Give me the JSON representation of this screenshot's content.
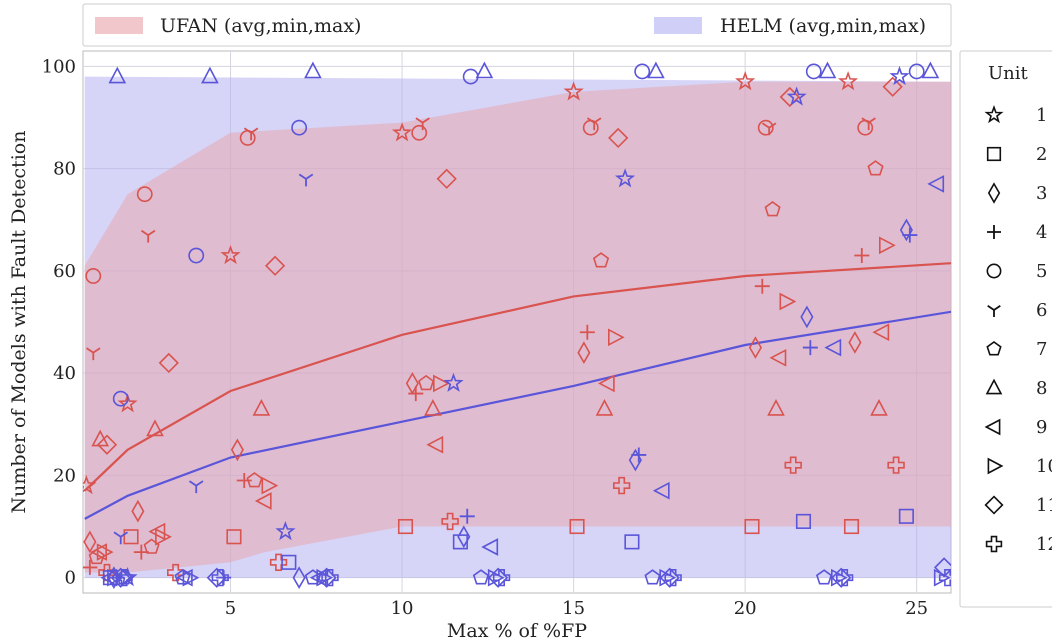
{
  "chart_data": {
    "type": "scatter",
    "xlabel": "Max % of %FP",
    "ylabel": "Number of Models with Fault Detection",
    "xlim": [
      0.7,
      26
    ],
    "ylim": [
      -3,
      103
    ],
    "xticks": [
      5,
      10,
      15,
      20,
      25
    ],
    "yticks": [
      0,
      20,
      40,
      60,
      80,
      100
    ],
    "grid": true,
    "legend_top": {
      "placement": "top",
      "entries": [
        {
          "label": "UFAN (avg,min,max)",
          "color": "#f2c7cc"
        },
        {
          "label": "HELM (avg,min,max)",
          "color": "#cfcff7"
        }
      ]
    },
    "legend_units": {
      "placement": "right",
      "title": "Unit",
      "entries": [
        {
          "label": "1",
          "marker": "star"
        },
        {
          "label": "2",
          "marker": "square"
        },
        {
          "label": "3",
          "marker": "diamond"
        },
        {
          "label": "4",
          "marker": "plus"
        },
        {
          "label": "5",
          "marker": "circle"
        },
        {
          "label": "6",
          "marker": "tri-down"
        },
        {
          "label": "7",
          "marker": "pentagon"
        },
        {
          "label": "8",
          "marker": "triangle-up"
        },
        {
          "label": "9",
          "marker": "triangle-left"
        },
        {
          "label": "10",
          "marker": "triangle-right"
        },
        {
          "label": "11",
          "marker": "diamond-wide"
        },
        {
          "label": "12",
          "marker": "thick-plus"
        }
      ]
    },
    "colors": {
      "ufan": "#d9534f",
      "helm": "#5a55d9",
      "ufan_band": "#e8a8b0",
      "helm_band": "#b4b0f0"
    },
    "series": [
      {
        "name": "UFAN (avg,min,max)",
        "color": "#d9534f",
        "avg": {
          "x": [
            0.75,
            2,
            5,
            10,
            15,
            20,
            26
          ],
          "y": [
            17,
            25,
            36.5,
            47.5,
            55,
            59,
            61.5
          ]
        },
        "min": {
          "x": [
            0.75,
            2,
            5,
            6,
            10,
            26
          ],
          "y": [
            1,
            1,
            3,
            5,
            10,
            10
          ]
        },
        "max": {
          "x": [
            0.75,
            2,
            5,
            10,
            15,
            20,
            26
          ],
          "y": [
            61,
            75,
            87,
            89,
            95,
            97,
            97
          ]
        },
        "points": [
          {
            "m": "star",
            "x": 0.8,
            "y": 18
          },
          {
            "m": "star",
            "x": 2.0,
            "y": 34
          },
          {
            "m": "star",
            "x": 5.0,
            "y": 63
          },
          {
            "m": "star",
            "x": 10.0,
            "y": 87
          },
          {
            "m": "star",
            "x": 15.0,
            "y": 95
          },
          {
            "m": "star",
            "x": 20.0,
            "y": 97
          },
          {
            "m": "star",
            "x": 23.0,
            "y": 97
          },
          {
            "m": "square",
            "x": 2.1,
            "y": 8
          },
          {
            "m": "square",
            "x": 5.1,
            "y": 8
          },
          {
            "m": "square",
            "x": 10.1,
            "y": 10
          },
          {
            "m": "square",
            "x": 15.1,
            "y": 10
          },
          {
            "m": "square",
            "x": 20.2,
            "y": 10
          },
          {
            "m": "square",
            "x": 23.1,
            "y": 10
          },
          {
            "m": "diamond",
            "x": 2.3,
            "y": 13
          },
          {
            "m": "diamond",
            "x": 5.2,
            "y": 25
          },
          {
            "m": "diamond",
            "x": 10.3,
            "y": 38
          },
          {
            "m": "diamond",
            "x": 15.3,
            "y": 44
          },
          {
            "m": "diamond",
            "x": 20.3,
            "y": 45
          },
          {
            "m": "diamond",
            "x": 23.2,
            "y": 46
          },
          {
            "m": "diamond",
            "x": 0.9,
            "y": 7
          },
          {
            "m": "plus",
            "x": 0.9,
            "y": 2
          },
          {
            "m": "plus",
            "x": 2.4,
            "y": 5
          },
          {
            "m": "plus",
            "x": 5.4,
            "y": 19
          },
          {
            "m": "plus",
            "x": 10.4,
            "y": 36
          },
          {
            "m": "plus",
            "x": 15.4,
            "y": 48
          },
          {
            "m": "plus",
            "x": 20.5,
            "y": 57
          },
          {
            "m": "plus",
            "x": 23.4,
            "y": 63
          },
          {
            "m": "circle",
            "x": 1.0,
            "y": 59
          },
          {
            "m": "circle",
            "x": 2.5,
            "y": 75
          },
          {
            "m": "circle",
            "x": 5.5,
            "y": 86
          },
          {
            "m": "circle",
            "x": 10.5,
            "y": 87
          },
          {
            "m": "circle",
            "x": 15.5,
            "y": 88
          },
          {
            "m": "circle",
            "x": 20.6,
            "y": 88
          },
          {
            "m": "circle",
            "x": 23.5,
            "y": 88
          },
          {
            "m": "tri-down",
            "x": 1.0,
            "y": 44
          },
          {
            "m": "tri-down",
            "x": 2.6,
            "y": 67
          },
          {
            "m": "tri-down",
            "x": 5.6,
            "y": 87
          },
          {
            "m": "tri-down",
            "x": 10.6,
            "y": 89
          },
          {
            "m": "tri-down",
            "x": 15.6,
            "y": 89
          },
          {
            "m": "tri-down",
            "x": 20.7,
            "y": 88
          },
          {
            "m": "tri-down",
            "x": 23.6,
            "y": 89
          },
          {
            "m": "pentagon",
            "x": 1.1,
            "y": 4
          },
          {
            "m": "pentagon",
            "x": 2.7,
            "y": 6
          },
          {
            "m": "pentagon",
            "x": 5.7,
            "y": 19
          },
          {
            "m": "pentagon",
            "x": 10.7,
            "y": 38
          },
          {
            "m": "pentagon",
            "x": 15.8,
            "y": 62
          },
          {
            "m": "pentagon",
            "x": 20.8,
            "y": 72
          },
          {
            "m": "pentagon",
            "x": 23.8,
            "y": 80
          },
          {
            "m": "triangle-up",
            "x": 1.2,
            "y": 27
          },
          {
            "m": "triangle-up",
            "x": 2.8,
            "y": 29
          },
          {
            "m": "triangle-up",
            "x": 5.9,
            "y": 33
          },
          {
            "m": "triangle-up",
            "x": 10.9,
            "y": 33
          },
          {
            "m": "triangle-up",
            "x": 15.9,
            "y": 33
          },
          {
            "m": "triangle-up",
            "x": 20.9,
            "y": 33
          },
          {
            "m": "triangle-up",
            "x": 23.9,
            "y": 33
          },
          {
            "m": "triangle-left",
            "x": 1.2,
            "y": 5
          },
          {
            "m": "triangle-left",
            "x": 2.9,
            "y": 9
          },
          {
            "m": "triangle-left",
            "x": 6.0,
            "y": 15
          },
          {
            "m": "triangle-left",
            "x": 11.0,
            "y": 26
          },
          {
            "m": "triangle-left",
            "x": 16.0,
            "y": 38
          },
          {
            "m": "triangle-left",
            "x": 21.0,
            "y": 43
          },
          {
            "m": "triangle-left",
            "x": 24.0,
            "y": 48
          },
          {
            "m": "triangle-right",
            "x": 1.3,
            "y": 5
          },
          {
            "m": "triangle-right",
            "x": 3.0,
            "y": 8
          },
          {
            "m": "triangle-right",
            "x": 6.1,
            "y": 18
          },
          {
            "m": "triangle-right",
            "x": 11.1,
            "y": 38
          },
          {
            "m": "triangle-right",
            "x": 16.2,
            "y": 47
          },
          {
            "m": "triangle-right",
            "x": 21.2,
            "y": 54
          },
          {
            "m": "triangle-right",
            "x": 24.1,
            "y": 65
          },
          {
            "m": "diamond-wide",
            "x": 1.4,
            "y": 26
          },
          {
            "m": "diamond-wide",
            "x": 3.2,
            "y": 42
          },
          {
            "m": "diamond-wide",
            "x": 6.3,
            "y": 61
          },
          {
            "m": "diamond-wide",
            "x": 11.3,
            "y": 78
          },
          {
            "m": "diamond-wide",
            "x": 16.3,
            "y": 86
          },
          {
            "m": "diamond-wide",
            "x": 21.3,
            "y": 94
          },
          {
            "m": "diamond-wide",
            "x": 24.3,
            "y": 96
          },
          {
            "m": "thick-plus",
            "x": 1.4,
            "y": 1
          },
          {
            "m": "thick-plus",
            "x": 3.4,
            "y": 1
          },
          {
            "m": "thick-plus",
            "x": 6.4,
            "y": 3
          },
          {
            "m": "thick-plus",
            "x": 11.4,
            "y": 11
          },
          {
            "m": "thick-plus",
            "x": 16.4,
            "y": 18
          },
          {
            "m": "thick-plus",
            "x": 21.4,
            "y": 22
          },
          {
            "m": "thick-plus",
            "x": 24.4,
            "y": 22
          }
        ]
      },
      {
        "name": "HELM (avg,min,max)",
        "color": "#5a55d9",
        "avg": {
          "x": [
            0.75,
            2,
            5,
            10,
            15,
            20,
            26
          ],
          "y": [
            11.5,
            16,
            23.5,
            30.5,
            37.5,
            45.5,
            52
          ]
        },
        "min": {
          "x": [
            0.75,
            26
          ],
          "y": [
            0,
            0
          ]
        },
        "max": {
          "x": [
            0.75,
            26
          ],
          "y": [
            98,
            97
          ]
        },
        "points": [
          {
            "m": "star",
            "x": 2.0,
            "y": 0
          },
          {
            "m": "star",
            "x": 6.6,
            "y": 9
          },
          {
            "m": "star",
            "x": 11.5,
            "y": 38
          },
          {
            "m": "star",
            "x": 16.5,
            "y": 78
          },
          {
            "m": "star",
            "x": 21.5,
            "y": 94
          },
          {
            "m": "star",
            "x": 24.5,
            "y": 98
          },
          {
            "m": "square",
            "x": 1.5,
            "y": 0
          },
          {
            "m": "square",
            "x": 6.7,
            "y": 3
          },
          {
            "m": "square",
            "x": 11.7,
            "y": 7
          },
          {
            "m": "square",
            "x": 16.7,
            "y": 7
          },
          {
            "m": "square",
            "x": 21.7,
            "y": 11
          },
          {
            "m": "square",
            "x": 24.7,
            "y": 12
          },
          {
            "m": "diamond",
            "x": 1.6,
            "y": 0
          },
          {
            "m": "diamond",
            "x": 7.0,
            "y": 0
          },
          {
            "m": "diamond",
            "x": 11.8,
            "y": 8
          },
          {
            "m": "diamond",
            "x": 16.8,
            "y": 23
          },
          {
            "m": "diamond",
            "x": 21.8,
            "y": 51
          },
          {
            "m": "diamond",
            "x": 24.7,
            "y": 68
          },
          {
            "m": "plus",
            "x": 1.7,
            "y": 0
          },
          {
            "m": "plus",
            "x": 4.8,
            "y": 0
          },
          {
            "m": "plus",
            "x": 11.9,
            "y": 12
          },
          {
            "m": "plus",
            "x": 16.9,
            "y": 24
          },
          {
            "m": "plus",
            "x": 21.9,
            "y": 45
          },
          {
            "m": "plus",
            "x": 24.8,
            "y": 67
          },
          {
            "m": "circle",
            "x": 1.8,
            "y": 35
          },
          {
            "m": "circle",
            "x": 4.0,
            "y": 63
          },
          {
            "m": "circle",
            "x": 7.0,
            "y": 88
          },
          {
            "m": "circle",
            "x": 12.0,
            "y": 98
          },
          {
            "m": "circle",
            "x": 17.0,
            "y": 99
          },
          {
            "m": "circle",
            "x": 22.0,
            "y": 99
          },
          {
            "m": "circle",
            "x": 25.0,
            "y": 99
          },
          {
            "m": "tri-down",
            "x": 1.8,
            "y": 8
          },
          {
            "m": "tri-down",
            "x": 4.0,
            "y": 18
          },
          {
            "m": "tri-down",
            "x": 7.2,
            "y": 78
          },
          {
            "m": "pentagon",
            "x": 1.9,
            "y": 0
          },
          {
            "m": "pentagon",
            "x": 3.6,
            "y": 0
          },
          {
            "m": "pentagon",
            "x": 7.4,
            "y": 0
          },
          {
            "m": "pentagon",
            "x": 12.3,
            "y": 0
          },
          {
            "m": "pentagon",
            "x": 17.3,
            "y": 0
          },
          {
            "m": "pentagon",
            "x": 22.3,
            "y": 0
          },
          {
            "m": "triangle-up",
            "x": 1.7,
            "y": 98
          },
          {
            "m": "triangle-up",
            "x": 4.4,
            "y": 98
          },
          {
            "m": "triangle-up",
            "x": 7.4,
            "y": 99
          },
          {
            "m": "triangle-up",
            "x": 12.4,
            "y": 99
          },
          {
            "m": "triangle-up",
            "x": 17.4,
            "y": 99
          },
          {
            "m": "triangle-up",
            "x": 22.4,
            "y": 99
          },
          {
            "m": "triangle-up",
            "x": 25.4,
            "y": 99
          },
          {
            "m": "triangle-left",
            "x": 1.5,
            "y": 0
          },
          {
            "m": "triangle-left",
            "x": 3.7,
            "y": 0
          },
          {
            "m": "triangle-left",
            "x": 7.6,
            "y": 0
          },
          {
            "m": "triangle-left",
            "x": 12.6,
            "y": 6
          },
          {
            "m": "triangle-left",
            "x": 17.6,
            "y": 17
          },
          {
            "m": "triangle-left",
            "x": 22.6,
            "y": 45
          },
          {
            "m": "triangle-left",
            "x": 25.6,
            "y": 77
          },
          {
            "m": "triangle-right",
            "x": 1.6,
            "y": 0
          },
          {
            "m": "triangle-right",
            "x": 3.8,
            "y": 0
          },
          {
            "m": "triangle-right",
            "x": 7.7,
            "y": 0
          },
          {
            "m": "triangle-right",
            "x": 12.7,
            "y": 0
          },
          {
            "m": "triangle-right",
            "x": 17.7,
            "y": 0
          },
          {
            "m": "triangle-right",
            "x": 22.7,
            "y": 0
          },
          {
            "m": "triangle-right",
            "x": 25.7,
            "y": 0
          },
          {
            "m": "diamond-wide",
            "x": 1.8,
            "y": 0
          },
          {
            "m": "diamond-wide",
            "x": 4.6,
            "y": 0
          },
          {
            "m": "diamond-wide",
            "x": 7.8,
            "y": 0
          },
          {
            "m": "diamond-wide",
            "x": 12.8,
            "y": 0
          },
          {
            "m": "diamond-wide",
            "x": 17.8,
            "y": 0
          },
          {
            "m": "diamond-wide",
            "x": 22.8,
            "y": 0
          },
          {
            "m": "diamond-wide",
            "x": 25.8,
            "y": 2
          },
          {
            "m": "thick-plus",
            "x": 1.9,
            "y": 0
          },
          {
            "m": "thick-plus",
            "x": 4.7,
            "y": 0
          },
          {
            "m": "thick-plus",
            "x": 7.9,
            "y": 0
          },
          {
            "m": "thick-plus",
            "x": 12.9,
            "y": 0
          },
          {
            "m": "thick-plus",
            "x": 17.9,
            "y": 0
          },
          {
            "m": "thick-plus",
            "x": 22.9,
            "y": 0
          },
          {
            "m": "thick-plus",
            "x": 25.9,
            "y": 0
          }
        ]
      }
    ]
  }
}
